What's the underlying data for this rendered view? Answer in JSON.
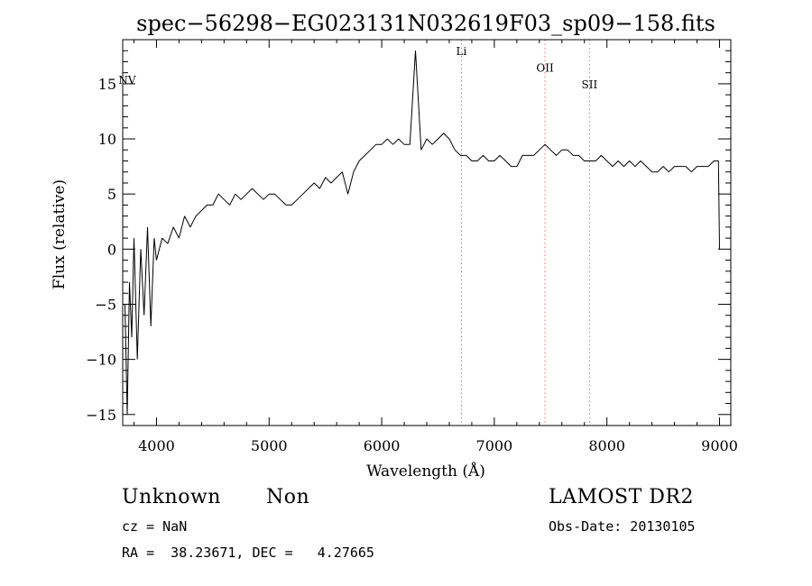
{
  "chart_data": {
    "type": "line",
    "title": "spec−56298−EG023131N032619F03_sp09−158.fits",
    "xlabel": "Wavelength (Å)",
    "ylabel": "Flux (relative)",
    "xlim": [
      3700,
      9100
    ],
    "ylim": [
      -16,
      19
    ],
    "x_ticks": [
      4000,
      5000,
      6000,
      7000,
      8000,
      9000
    ],
    "x_tick_labels": [
      "4000",
      "5000",
      "6000",
      "7000",
      "8000",
      "9000"
    ],
    "y_ticks": [
      -15,
      -10,
      -5,
      0,
      5,
      10,
      15
    ],
    "y_tick_labels": [
      "−15",
      "−10",
      "−5",
      "0",
      "5",
      "10",
      "15"
    ],
    "grid": false,
    "series": [
      {
        "x": [
          3720,
          3740,
          3760,
          3780,
          3800,
          3830,
          3860,
          3890,
          3920,
          3950,
          3980,
          4000,
          4050,
          4100,
          4150,
          4200,
          4250,
          4300,
          4350,
          4400,
          4450,
          4500,
          4550,
          4600,
          4650,
          4700,
          4750,
          4800,
          4850,
          4900,
          4950,
          5000,
          5050,
          5100,
          5150,
          5200,
          5250,
          5300,
          5350,
          5400,
          5450,
          5500,
          5550,
          5600,
          5650,
          5700,
          5750,
          5800,
          5850,
          5900,
          5950,
          6000,
          6050,
          6100,
          6150,
          6200,
          6250,
          6300,
          6350,
          6400,
          6450,
          6500,
          6550,
          6600,
          6650,
          6700,
          6750,
          6800,
          6850,
          6900,
          6950,
          7000,
          7050,
          7100,
          7150,
          7200,
          7250,
          7300,
          7350,
          7400,
          7450,
          7500,
          7550,
          7600,
          7650,
          7700,
          7750,
          7800,
          7850,
          7900,
          7950,
          8000,
          8050,
          8100,
          8150,
          8200,
          8250,
          8300,
          8350,
          8400,
          8450,
          8500,
          8550,
          8600,
          8650,
          8700,
          8750,
          8800,
          8850,
          8900,
          8950,
          8990,
          9000
        ],
        "y": [
          -5,
          -15,
          -3,
          -8,
          1,
          -10,
          0,
          -6,
          2,
          -7,
          1,
          -1,
          1,
          0.5,
          2,
          1,
          3,
          2,
          3,
          3.5,
          4,
          4,
          5,
          4.5,
          4,
          5,
          4.5,
          5,
          5.5,
          5,
          4.5,
          5,
          5,
          4.5,
          4,
          4,
          4.5,
          5,
          5.5,
          6,
          5.5,
          6.5,
          6,
          6.5,
          7,
          5,
          7,
          8,
          8.5,
          9,
          9.5,
          9.5,
          10,
          9.5,
          10,
          9.5,
          9.5,
          18,
          9,
          10,
          9.5,
          10,
          10.5,
          10,
          9,
          8.5,
          8.5,
          8,
          8,
          8.5,
          8,
          8,
          8.5,
          8,
          7.5,
          7.5,
          8.5,
          8.5,
          8.5,
          9,
          9.5,
          9,
          8.5,
          9,
          9,
          8.5,
          8.5,
          8,
          8,
          8,
          8.5,
          8,
          7.5,
          8,
          7.5,
          8,
          7.5,
          8,
          7.5,
          7,
          7,
          7.5,
          7,
          7.5,
          7.5,
          7.5,
          7,
          7.5,
          7.5,
          7.5,
          8,
          8,
          0
        ]
      }
    ],
    "annotations": [
      {
        "label": "NV",
        "x": 3740,
        "y": 15
      },
      {
        "label": "Li",
        "x": 6708,
        "y": 17.6
      },
      {
        "label": "OII",
        "x": 7450,
        "y": 16.1
      },
      {
        "label": "SII",
        "x": 7845,
        "y": 14.6
      }
    ],
    "marker_lines": [
      6708,
      7450,
      7845
    ],
    "marker_line_color": "#ff6666"
  },
  "info": {
    "class": "Unknown",
    "subclass": "Non",
    "survey": "LAMOST DR2",
    "redshift": "cz = NaN",
    "obs_date": "Obs-Date: 20130105",
    "coords": "RA =  38.23671, DEC =   4.27665"
  }
}
